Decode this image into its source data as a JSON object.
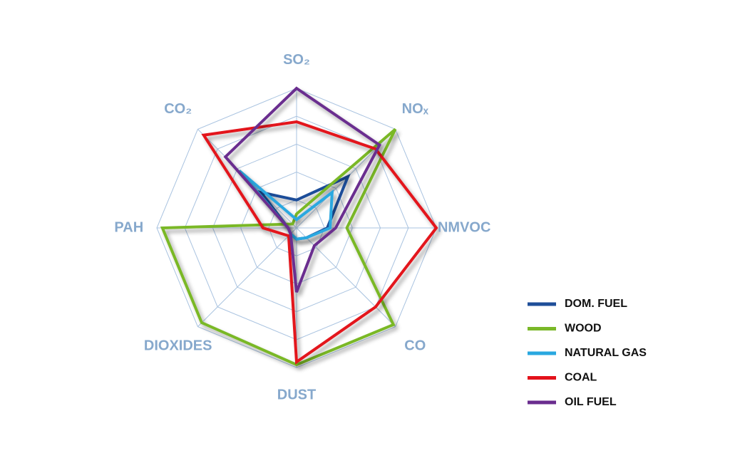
{
  "chart_data": {
    "type": "radar",
    "categories": [
      "SO₂",
      "NOₓ",
      "NMVOC",
      "CO",
      "DUST",
      "DIOXIDES",
      "PAH",
      "CO₂"
    ],
    "rlim": [
      0,
      5
    ],
    "rticks": [
      1,
      2,
      3,
      4,
      5
    ],
    "grid": true,
    "legend": "lower right",
    "series": [
      {
        "name": "DOM. FUEL",
        "color": "#1f4e99",
        "values": [
          1.0,
          2.6,
          1.1,
          0.5,
          0.4,
          0.3,
          0.3,
          1.8
        ]
      },
      {
        "name": "WOOD",
        "color": "#7ab828",
        "values": [
          0.5,
          5.0,
          1.8,
          4.9,
          4.9,
          4.8,
          4.8,
          0.2
        ]
      },
      {
        "name": "NATURAL GAS",
        "color": "#29a8e0",
        "values": [
          0.3,
          1.8,
          1.2,
          0.5,
          0.4,
          0.3,
          0.3,
          2.9
        ]
      },
      {
        "name": "COAL",
        "color": "#e3121b",
        "values": [
          3.8,
          4.0,
          5.0,
          4.0,
          4.8,
          0.4,
          1.2,
          4.7
        ]
      },
      {
        "name": "OIL FUEL",
        "color": "#6a2d8f",
        "values": [
          5.0,
          4.2,
          1.4,
          0.9,
          2.3,
          0.3,
          0.3,
          3.6
        ]
      }
    ]
  }
}
